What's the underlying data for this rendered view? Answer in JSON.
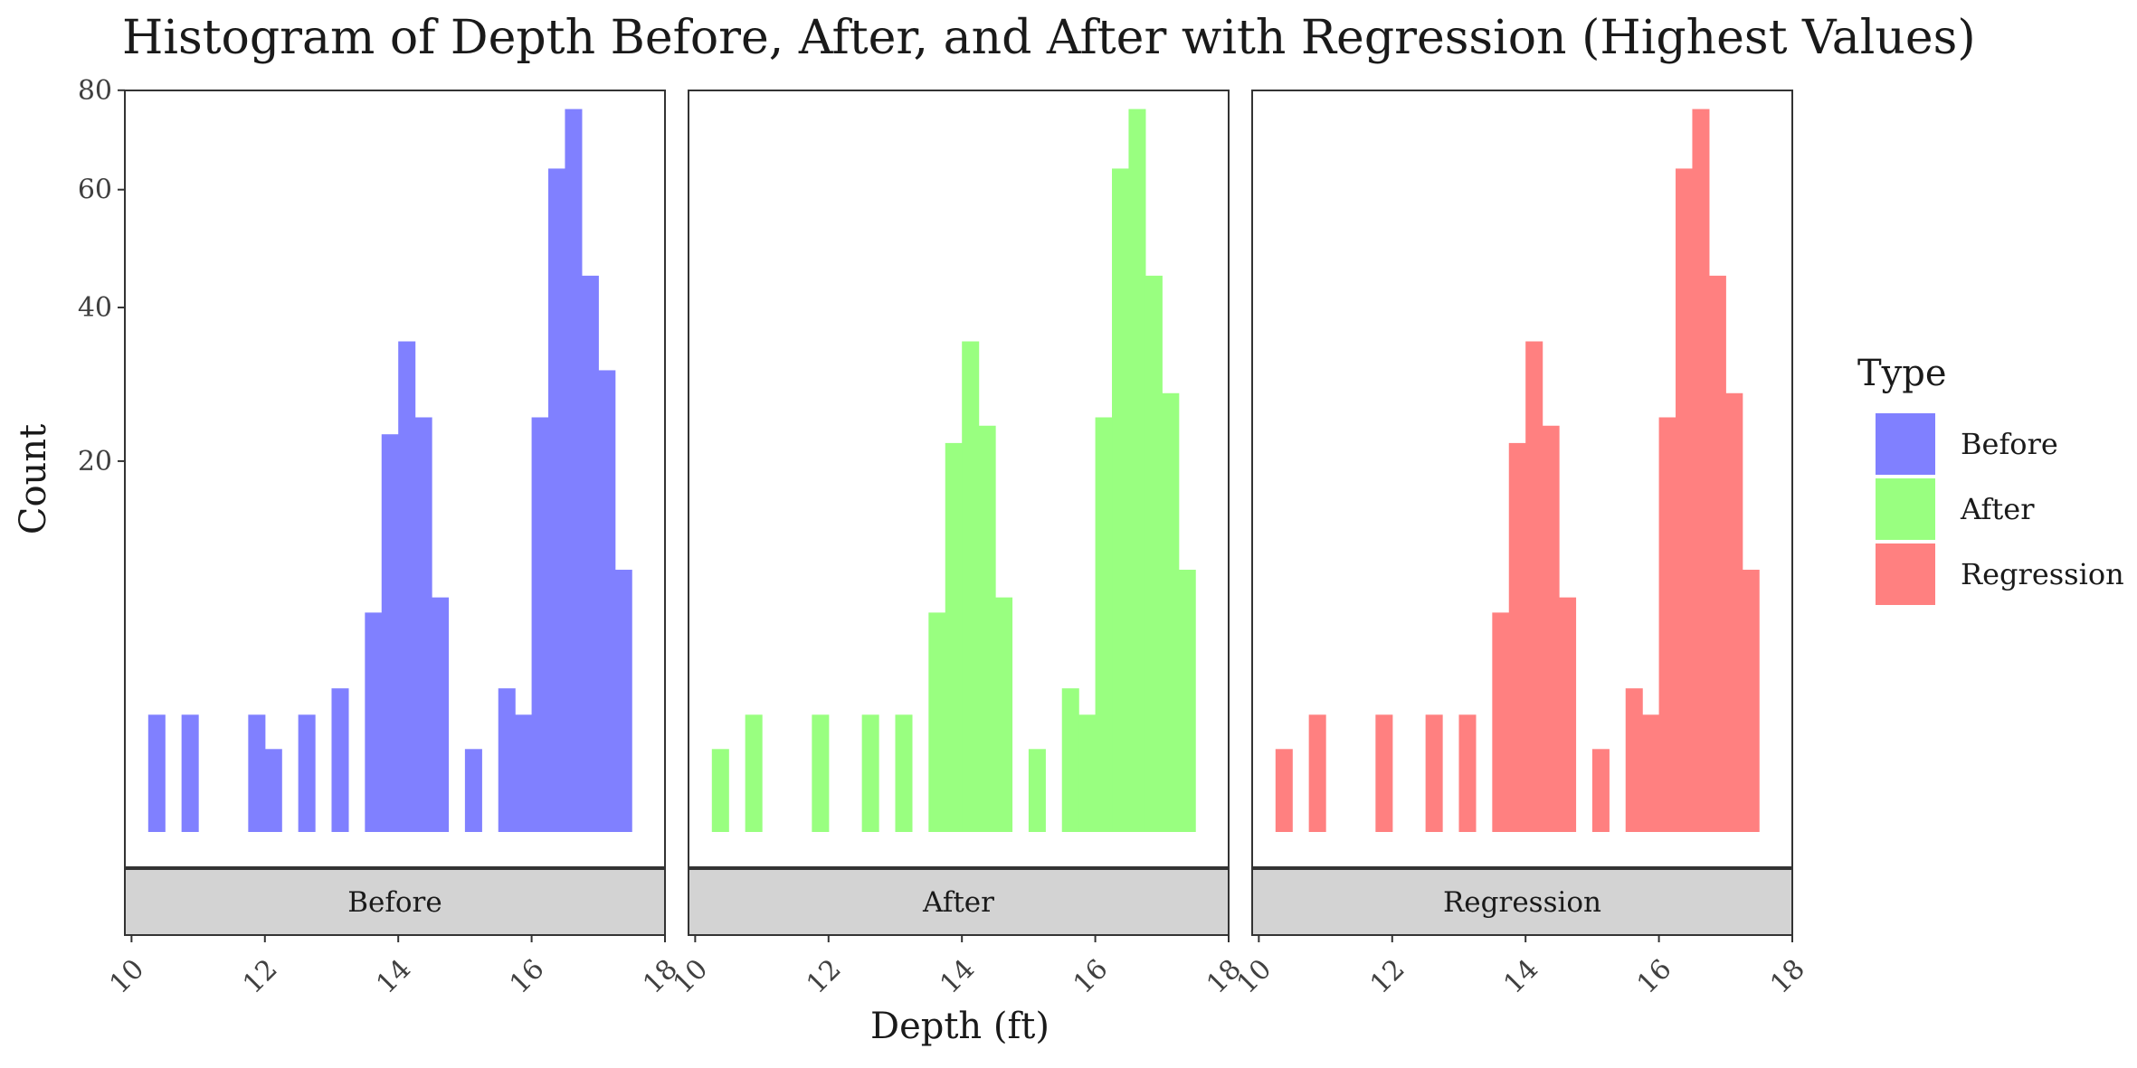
{
  "chart_data": {
    "type": "bar",
    "subtype": "histogram, faceted",
    "title": "Histogram of Depth Before, After, and After with Regression (Highest Values)",
    "xlabel": "Depth (ft)",
    "ylabel": "Count",
    "xlim": [
      9.9,
      18
    ],
    "x_ticks": [
      10,
      12,
      14,
      16,
      18
    ],
    "y_scale": "sqrt",
    "y_ticks": [
      20,
      40,
      60,
      80
    ],
    "ylim": [
      0,
      80
    ],
    "grid": false,
    "bin_width": 0.25,
    "legend": {
      "title": "Type",
      "position": "right",
      "entries": [
        "Before",
        "After",
        "Regression"
      ]
    },
    "facets": [
      {
        "name": "Before",
        "color": "#8080FF",
        "bins": [
          {
            "x": 10.25,
            "count": 2
          },
          {
            "x": 10.75,
            "count": 2
          },
          {
            "x": 11.75,
            "count": 2
          },
          {
            "x": 12.0,
            "count": 1
          },
          {
            "x": 12.5,
            "count": 2
          },
          {
            "x": 13.0,
            "count": 3
          },
          {
            "x": 13.5,
            "count": 7
          },
          {
            "x": 13.75,
            "count": 23
          },
          {
            "x": 14.0,
            "count": 35
          },
          {
            "x": 14.25,
            "count": 25
          },
          {
            "x": 14.5,
            "count": 8
          },
          {
            "x": 15.0,
            "count": 1
          },
          {
            "x": 15.5,
            "count": 3
          },
          {
            "x": 15.75,
            "count": 2
          },
          {
            "x": 16.0,
            "count": 25
          },
          {
            "x": 16.25,
            "count": 64
          },
          {
            "x": 16.5,
            "count": 76
          },
          {
            "x": 16.75,
            "count": 45
          },
          {
            "x": 17.0,
            "count": 31
          },
          {
            "x": 17.25,
            "count": 10
          }
        ]
      },
      {
        "name": "After",
        "color": "#99FF80",
        "bins": [
          {
            "x": 10.25,
            "count": 1
          },
          {
            "x": 10.75,
            "count": 2
          },
          {
            "x": 11.75,
            "count": 2
          },
          {
            "x": 12.5,
            "count": 2
          },
          {
            "x": 13.0,
            "count": 2
          },
          {
            "x": 13.5,
            "count": 7
          },
          {
            "x": 13.75,
            "count": 22
          },
          {
            "x": 14.0,
            "count": 35
          },
          {
            "x": 14.25,
            "count": 24
          },
          {
            "x": 14.5,
            "count": 8
          },
          {
            "x": 15.0,
            "count": 1
          },
          {
            "x": 15.5,
            "count": 3
          },
          {
            "x": 15.75,
            "count": 2
          },
          {
            "x": 16.0,
            "count": 25
          },
          {
            "x": 16.25,
            "count": 64
          },
          {
            "x": 16.5,
            "count": 76
          },
          {
            "x": 16.75,
            "count": 45
          },
          {
            "x": 17.0,
            "count": 28
          },
          {
            "x": 17.25,
            "count": 10
          }
        ]
      },
      {
        "name": "Regression",
        "color": "#FF8080",
        "bins": [
          {
            "x": 10.25,
            "count": 1
          },
          {
            "x": 10.75,
            "count": 2
          },
          {
            "x": 11.75,
            "count": 2
          },
          {
            "x": 12.5,
            "count": 2
          },
          {
            "x": 13.0,
            "count": 2
          },
          {
            "x": 13.5,
            "count": 7
          },
          {
            "x": 13.75,
            "count": 22
          },
          {
            "x": 14.0,
            "count": 35
          },
          {
            "x": 14.25,
            "count": 24
          },
          {
            "x": 14.5,
            "count": 8
          },
          {
            "x": 15.0,
            "count": 1
          },
          {
            "x": 15.5,
            "count": 3
          },
          {
            "x": 15.75,
            "count": 2
          },
          {
            "x": 16.0,
            "count": 25
          },
          {
            "x": 16.25,
            "count": 64
          },
          {
            "x": 16.5,
            "count": 76
          },
          {
            "x": 16.75,
            "count": 45
          },
          {
            "x": 17.0,
            "count": 28
          },
          {
            "x": 17.25,
            "count": 10
          }
        ]
      }
    ]
  }
}
